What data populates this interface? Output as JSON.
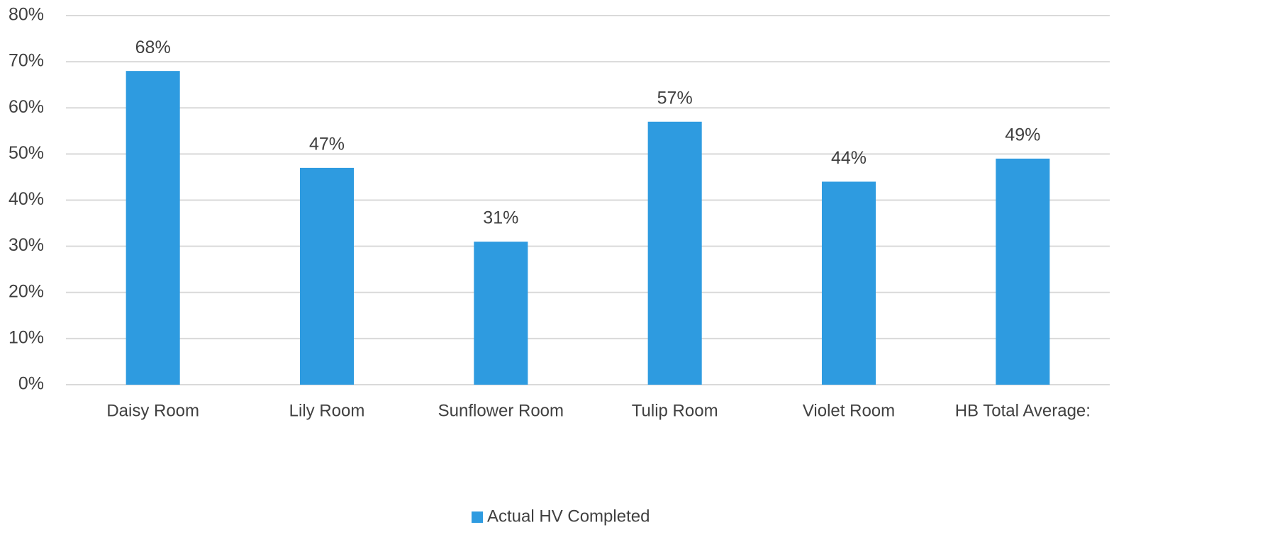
{
  "chart_data": {
    "type": "bar",
    "categories": [
      "Daisy Room",
      "Lily Room",
      "Sunflower Room",
      "Tulip Room",
      "Violet Room",
      "HB Total Average:"
    ],
    "series": [
      {
        "name": "Actual HV Completed",
        "color": "#2e9be0",
        "values": [
          68,
          47,
          31,
          57,
          44,
          49
        ],
        "value_labels": [
          "68%",
          "47%",
          "31%",
          "57%",
          "44%",
          "49%"
        ]
      }
    ],
    "ylim": [
      0,
      80
    ],
    "yticks": [
      {
        "value": 0,
        "label": "0%"
      },
      {
        "value": 10,
        "label": "10%"
      },
      {
        "value": 20,
        "label": "20%"
      },
      {
        "value": 30,
        "label": "30%"
      },
      {
        "value": 40,
        "label": "40%"
      },
      {
        "value": 50,
        "label": "50%"
      },
      {
        "value": 60,
        "label": "60%"
      },
      {
        "value": 70,
        "label": "70%"
      },
      {
        "value": 80,
        "label": "80%"
      }
    ],
    "grid": true,
    "legend": "bottom"
  }
}
